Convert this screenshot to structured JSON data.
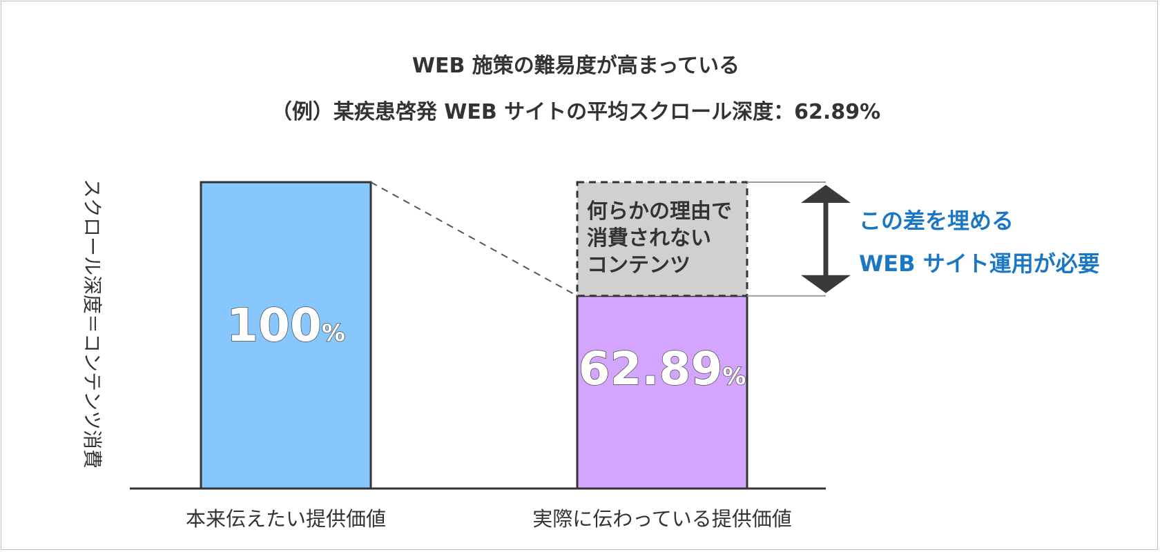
{
  "chart_data": {
    "type": "bar",
    "title": "WEB 施策の難易度が高まっている",
    "subtitle": "（例）某疾患啓発 WEB サイトの平均スクロール深度：62.89%",
    "ylabel": "スクロール深度＝コンテンツ消費",
    "ylim": [
      0,
      100
    ],
    "categories": [
      "本来伝えたい提供価値",
      "実際に伝わっている提供価値"
    ],
    "values": [
      100,
      62.89
    ],
    "value_labels": [
      {
        "number": "100",
        "unit": "%"
      },
      {
        "number": "62.89",
        "unit": "%"
      }
    ],
    "gap_label": [
      "何らかの理由で",
      "消費されない",
      "コンテンツ"
    ],
    "annotation": [
      "この差を埋める",
      "WEB サイト運用が必要"
    ],
    "grid": false,
    "legend": "none"
  },
  "colors": {
    "bar1": "#88c7fd",
    "bar2": "#d3a5fe",
    "gap": "#d0d0d0",
    "outline": "#333333",
    "arrow": "#3a3a3a",
    "annotation": "#1b76c4",
    "text": "#333333"
  },
  "icons": {
    "gap_arrow": "double-headed-vertical-arrow"
  }
}
